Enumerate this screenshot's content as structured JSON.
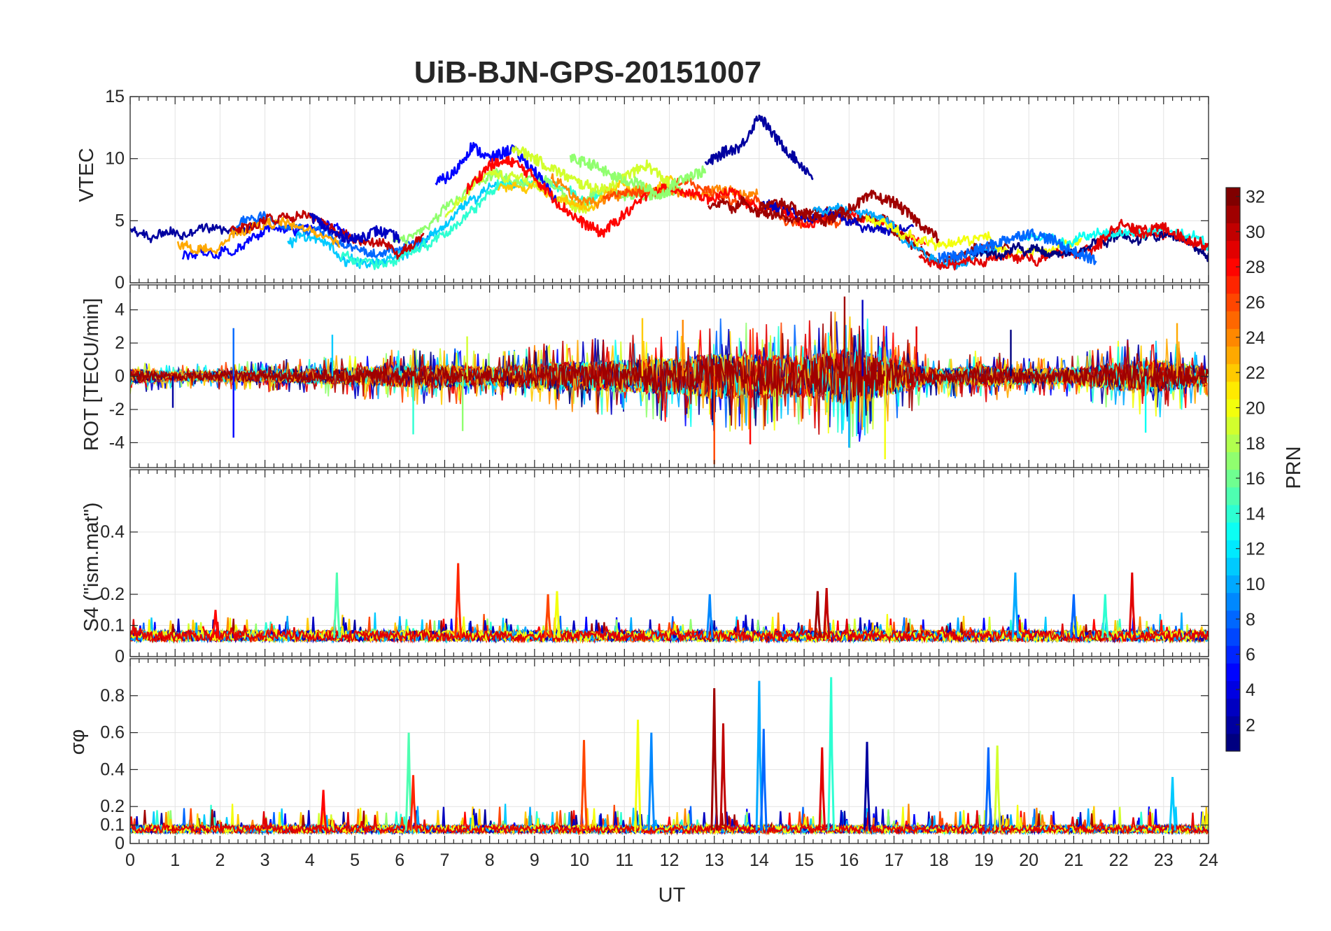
{
  "figure": {
    "title": "UiB-BJN-GPS-20151007",
    "xlabel": "UT"
  },
  "chart_data": [
    {
      "type": "line",
      "panel": "vtec",
      "title": "",
      "ylabel": "VTEC",
      "ylim": [
        0,
        15
      ],
      "xlim": [
        0,
        24
      ],
      "yticks": [
        "0",
        "5",
        "10",
        "15"
      ],
      "ytick_values": [
        0,
        5,
        10,
        15
      ],
      "xtick_labels_shown": false,
      "grid": true,
      "series": [
        {
          "prn": 3,
          "x": [
            4.0,
            4.5,
            5.0,
            5.5,
            6.0
          ],
          "y": [
            5.5,
            4.0,
            3.5,
            4.2,
            3.6
          ]
        },
        {
          "prn": 5,
          "x": [
            6.8,
            7.2,
            7.6,
            8.0,
            8.5,
            9.0,
            9.5
          ],
          "y": [
            8.0,
            8.8,
            11.0,
            10.0,
            10.8,
            9.0,
            6.5
          ]
        },
        {
          "prn": 28,
          "x": [
            7.5,
            8.0,
            8.5,
            9.0,
            9.5,
            10.0,
            10.5,
            11.0,
            11.5
          ],
          "y": [
            7.5,
            9.5,
            9.8,
            8.5,
            6.5,
            5.0,
            4.0,
            5.5,
            7.0
          ]
        },
        {
          "prn": 19,
          "x": [
            8.5,
            9.0,
            9.5,
            10.0,
            10.5,
            11.0,
            11.5,
            12.0
          ],
          "y": [
            11.0,
            10.0,
            9.0,
            8.0,
            7.5,
            8.5,
            9.5,
            8.0
          ]
        },
        {
          "prn": 17,
          "x": [
            9.8,
            10.3,
            10.8,
            11.3,
            11.8,
            12.3,
            12.8
          ],
          "y": [
            10.0,
            9.5,
            8.5,
            8.0,
            7.0,
            8.5,
            9.0
          ]
        },
        {
          "prn": 2,
          "x": [
            12.8,
            13.2,
            13.6,
            14.0,
            14.4,
            14.8,
            15.2
          ],
          "y": [
            9.5,
            10.5,
            11.0,
            13.5,
            11.5,
            10.0,
            8.5
          ]
        },
        {
          "prn": 31,
          "x": [
            14.0,
            14.5,
            15.0,
            15.5,
            16.0,
            16.5,
            17.0,
            17.5,
            18.0
          ],
          "y": [
            6.0,
            6.5,
            5.5,
            5.0,
            6.0,
            7.0,
            6.5,
            5.0,
            3.5
          ]
        },
        {
          "prn": 8,
          "x": [
            18.0,
            18.5,
            19.0,
            19.5,
            20.0,
            20.5,
            21.0,
            21.5
          ],
          "y": [
            2.0,
            2.2,
            2.8,
            3.5,
            4.0,
            3.5,
            2.5,
            1.8
          ]
        },
        {
          "prn": 29,
          "x": [
            21.5,
            22.0,
            22.5,
            23.0,
            23.5,
            24.0
          ],
          "y": [
            3.0,
            4.8,
            4.0,
            4.5,
            3.5,
            3.0
          ]
        }
      ]
    },
    {
      "type": "line",
      "panel": "rot",
      "title": "",
      "ylabel": "ROT [TECU/min]",
      "ylim": [
        -5.5,
        5.5
      ],
      "xlim": [
        0,
        24
      ],
      "yticks": [
        "-4",
        "-2",
        "0",
        "2",
        "4"
      ],
      "ytick_values": [
        -4,
        -2,
        0,
        2,
        4
      ],
      "xtick_labels_shown": false,
      "grid": true,
      "envelope": {
        "x": [
          0,
          1,
          2,
          3,
          4,
          5,
          6,
          7,
          8,
          9,
          10,
          11,
          12,
          13,
          14,
          15,
          16,
          17,
          18,
          19,
          20,
          21,
          22,
          23,
          24
        ],
        "amplitude": [
          0.8,
          0.5,
          0.6,
          0.7,
          0.8,
          1.0,
          1.2,
          1.3,
          1.0,
          1.4,
          1.6,
          1.8,
          2.0,
          2.5,
          2.4,
          2.3,
          3.2,
          2.0,
          0.8,
          1.2,
          0.8,
          0.9,
          1.6,
          1.8,
          1.0
        ]
      },
      "spikes": [
        {
          "x": 0.95,
          "y": -1.9
        },
        {
          "x": 2.3,
          "y": -3.7
        },
        {
          "x": 2.3,
          "y": 2.9
        },
        {
          "x": 4.5,
          "y": 2.5
        },
        {
          "x": 6.3,
          "y": -3.5
        },
        {
          "x": 7.4,
          "y": -3.3
        },
        {
          "x": 7.5,
          "y": 2.4
        },
        {
          "x": 11.4,
          "y": 3.5
        },
        {
          "x": 12.3,
          "y": 3.4
        },
        {
          "x": 13.0,
          "y": -5.3
        },
        {
          "x": 13.8,
          "y": -4.1
        },
        {
          "x": 15.9,
          "y": 4.8
        },
        {
          "x": 16.3,
          "y": 4.6
        },
        {
          "x": 16.0,
          "y": -4.3
        },
        {
          "x": 16.8,
          "y": -5.0
        },
        {
          "x": 17.5,
          "y": 3.0
        },
        {
          "x": 19.6,
          "y": 2.8
        },
        {
          "x": 22.6,
          "y": -3.4
        },
        {
          "x": 23.3,
          "y": 3.2
        }
      ]
    },
    {
      "type": "line",
      "panel": "s4",
      "title": "",
      "ylabel": "S4 (\"ism.mat\")",
      "ylim": [
        0,
        0.6
      ],
      "xlim": [
        0,
        24
      ],
      "yticks": [
        "0",
        "0.1",
        "0.2",
        "0.4"
      ],
      "ytick_values": [
        0,
        0.1,
        0.2,
        0.4
      ],
      "xtick_labels_shown": false,
      "grid": true,
      "baseline": 0.06,
      "peaks": [
        {
          "x": 1.9,
          "y": 0.15
        },
        {
          "x": 4.6,
          "y": 0.27
        },
        {
          "x": 7.3,
          "y": 0.3
        },
        {
          "x": 9.3,
          "y": 0.2
        },
        {
          "x": 9.5,
          "y": 0.21
        },
        {
          "x": 12.9,
          "y": 0.2
        },
        {
          "x": 15.3,
          "y": 0.21
        },
        {
          "x": 15.5,
          "y": 0.22
        },
        {
          "x": 19.7,
          "y": 0.27
        },
        {
          "x": 21.0,
          "y": 0.2
        },
        {
          "x": 21.7,
          "y": 0.2
        },
        {
          "x": 22.3,
          "y": 0.27
        }
      ]
    },
    {
      "type": "line",
      "panel": "sigma_phi",
      "title": "",
      "ylabel": "σφ",
      "ylim": [
        0,
        1
      ],
      "xlim": [
        0,
        24
      ],
      "yticks": [
        "0",
        "0.1",
        "0.2",
        "0.4",
        "0.6",
        "0.8"
      ],
      "ytick_values": [
        0,
        0.1,
        0.2,
        0.4,
        0.6,
        0.8
      ],
      "xticks": [
        "0",
        "1",
        "2",
        "3",
        "4",
        "5",
        "6",
        "7",
        "8",
        "9",
        "10",
        "11",
        "12",
        "13",
        "14",
        "15",
        "16",
        "17",
        "18",
        "19",
        "20",
        "21",
        "22",
        "23",
        "24"
      ],
      "grid": true,
      "baseline": 0.07,
      "peaks": [
        {
          "x": 4.3,
          "y": 0.29
        },
        {
          "x": 6.2,
          "y": 0.6
        },
        {
          "x": 6.3,
          "y": 0.37
        },
        {
          "x": 10.1,
          "y": 0.56
        },
        {
          "x": 11.3,
          "y": 0.67
        },
        {
          "x": 11.6,
          "y": 0.6
        },
        {
          "x": 13.0,
          "y": 0.84
        },
        {
          "x": 13.2,
          "y": 0.65
        },
        {
          "x": 14.0,
          "y": 0.88
        },
        {
          "x": 14.1,
          "y": 0.62
        },
        {
          "x": 15.6,
          "y": 0.9
        },
        {
          "x": 15.4,
          "y": 0.52
        },
        {
          "x": 16.4,
          "y": 0.55
        },
        {
          "x": 19.1,
          "y": 0.52
        },
        {
          "x": 19.3,
          "y": 0.53
        },
        {
          "x": 23.2,
          "y": 0.36
        }
      ]
    }
  ],
  "colorbar": {
    "label": "PRN",
    "range": [
      1,
      32
    ],
    "ticks": [
      "2",
      "4",
      "6",
      "8",
      "10",
      "12",
      "14",
      "16",
      "18",
      "20",
      "22",
      "24",
      "26",
      "28",
      "30",
      "32"
    ],
    "tick_values": [
      2,
      4,
      6,
      8,
      10,
      12,
      14,
      16,
      18,
      20,
      22,
      24,
      26,
      28,
      30,
      32
    ],
    "colormap": "jet"
  },
  "colors": {
    "axis": "#262626",
    "grid": "#e3e3e3"
  }
}
